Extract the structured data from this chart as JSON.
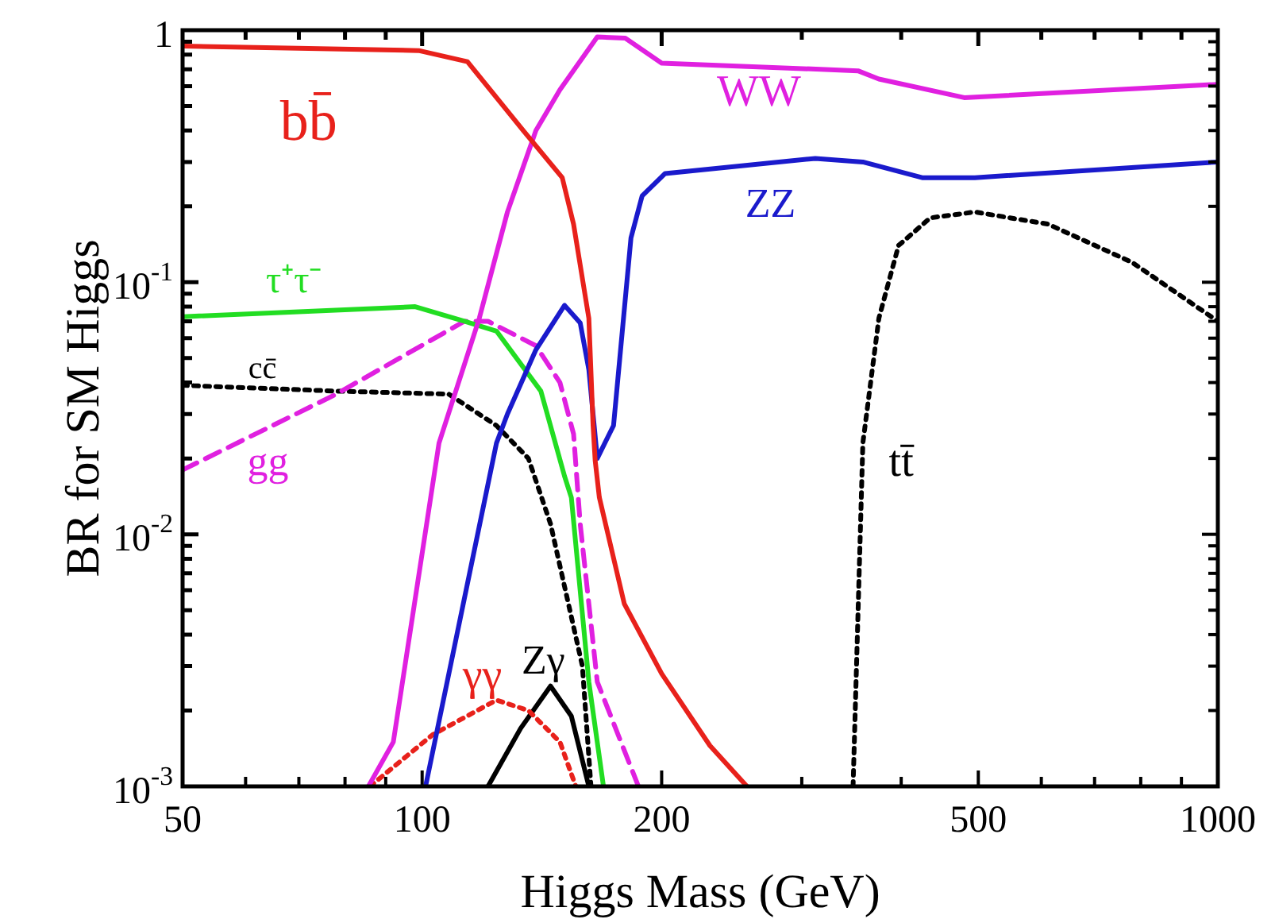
{
  "chart_data": {
    "type": "line",
    "xlabel": "Higgs Mass (GeV)",
    "ylabel": "BR for SM Higgs",
    "log": "xy",
    "grid": false,
    "legend": false,
    "marker": "none",
    "xlim": [
      50,
      1000
    ],
    "ylim": [
      0.001,
      1
    ],
    "xticks": [
      50,
      {
        "value": 60,
        "label": null
      },
      {
        "value": 70,
        "label": null
      },
      {
        "value": 80,
        "label": null
      },
      {
        "value": 90,
        "label": null
      },
      100,
      200,
      {
        "value": 300,
        "label": null
      },
      {
        "value": 400,
        "label": null
      },
      500,
      {
        "value": 600,
        "label": null
      },
      {
        "value": 700,
        "label": null
      },
      {
        "value": 800,
        "label": null
      },
      {
        "value": 900,
        "label": null
      },
      1000
    ],
    "yticks": [
      {
        "value": 0.001,
        "label": "10$^{-3}$"
      },
      {
        "value": 0.002,
        "label": null
      },
      {
        "value": 0.003,
        "label": null
      },
      {
        "value": 0.004,
        "label": null
      },
      {
        "value": 0.005,
        "label": null
      },
      {
        "value": 0.006,
        "label": null
      },
      {
        "value": 0.007,
        "label": null
      },
      {
        "value": 0.008,
        "label": null
      },
      {
        "value": 0.009,
        "label": null
      },
      {
        "value": 0.01,
        "label": "10$^{-2}$"
      },
      {
        "value": 0.02,
        "label": null
      },
      {
        "value": 0.03,
        "label": null
      },
      {
        "value": 0.04,
        "label": null
      },
      {
        "value": 0.05,
        "label": null
      },
      {
        "value": 0.06,
        "label": null
      },
      {
        "value": 0.07,
        "label": null
      },
      {
        "value": 0.08,
        "label": null
      },
      {
        "value": 0.09,
        "label": null
      },
      {
        "value": 0.1,
        "label": "10$^{-1}$"
      },
      {
        "value": 0.2,
        "label": null
      },
      {
        "value": 0.3,
        "label": null
      },
      {
        "value": 0.4,
        "label": null
      },
      {
        "value": 0.5,
        "label": null
      },
      {
        "value": 0.6,
        "label": null
      },
      {
        "value": 0.7,
        "label": null
      },
      {
        "value": 0.8,
        "label": null
      },
      {
        "value": 0.9,
        "label": null
      },
      1
    ],
    "series": [
      {
        "name": "bb̄",
        "color": "#e8211b",
        "line_style": "solid",
        "x": [
          50,
          99,
          114,
          134,
          150,
          155,
          162,
          164,
          165,
          167,
          179.5,
          200,
          230,
          256
        ],
        "values": [
          0.865,
          0.83,
          0.75,
          0.4,
          0.26,
          0.17,
          0.072,
          0.027,
          0.0196,
          0.014,
          0.0053,
          0.0028,
          0.00145,
          0.001
        ]
      },
      {
        "name": "WW",
        "color": "#e020e0",
        "line_style": "solid",
        "x": [
          85.6,
          92,
          105,
          118,
          128,
          139,
          149,
          166,
          180,
          200,
          353,
          375,
          480,
          1000
        ],
        "values": [
          0.001,
          0.0015,
          0.023,
          0.072,
          0.19,
          0.4,
          0.58,
          0.94,
          0.93,
          0.74,
          0.69,
          0.64,
          0.54,
          0.61
        ]
      },
      {
        "name": "ZZ",
        "color": "#1a1acc",
        "line_style": "solid",
        "x": [
          101,
          124,
          128,
          139,
          151,
          158,
          162,
          166,
          174,
          183,
          189,
          202,
          312,
          358,
          425,
          495,
          1000
        ],
        "values": [
          0.001,
          0.023,
          0.03,
          0.054,
          0.081,
          0.069,
          0.045,
          0.02,
          0.027,
          0.15,
          0.22,
          0.27,
          0.31,
          0.3,
          0.26,
          0.26,
          0.3
        ]
      },
      {
        "name": "τ⁺τ⁻",
        "color": "#22dd22",
        "line_style": "solid",
        "x": [
          50,
          98,
          113,
          124,
          141,
          151,
          154,
          162,
          169
        ],
        "values": [
          0.073,
          0.08,
          0.07,
          0.064,
          0.037,
          0.017,
          0.014,
          0.0026,
          0.001
        ]
      },
      {
        "name": "gg",
        "color": "#e020e0",
        "line_style": "dashed",
        "x": [
          50,
          78,
          113,
          121,
          139,
          149,
          155,
          158,
          166,
          187
        ],
        "values": [
          0.018,
          0.036,
          0.07,
          0.07,
          0.056,
          0.04,
          0.025,
          0.011,
          0.0026,
          0.001
        ]
      },
      {
        "name": "cc̄",
        "color": "#000000",
        "line_style": "dotted",
        "x": [
          50,
          78,
          108,
          124,
          136,
          145,
          159,
          163
        ],
        "values": [
          0.039,
          0.037,
          0.036,
          0.027,
          0.02,
          0.011,
          0.003,
          0.001
        ]
      },
      {
        "name": "tt̄",
        "color": "#000000",
        "line_style": "dotted",
        "x": [
          348,
          358,
          375,
          397,
          435,
          495,
          612,
          780,
          1000
        ],
        "values": [
          0.001,
          0.023,
          0.072,
          0.14,
          0.18,
          0.19,
          0.17,
          0.12,
          0.07
        ]
      },
      {
        "name": "γγ",
        "color": "#e8211b",
        "line_style": "dotted",
        "x": [
          86,
          103,
          124,
          136,
          149,
          156
        ],
        "values": [
          0.001,
          0.0016,
          0.0022,
          0.002,
          0.0015,
          0.001
        ]
      },
      {
        "name": "Zγ",
        "color": "#000000",
        "line_style": "solid",
        "x": [
          121,
          133,
          145,
          154,
          162
        ],
        "values": [
          0.001,
          0.0017,
          0.0025,
          0.0019,
          0.001
        ]
      }
    ]
  }
}
